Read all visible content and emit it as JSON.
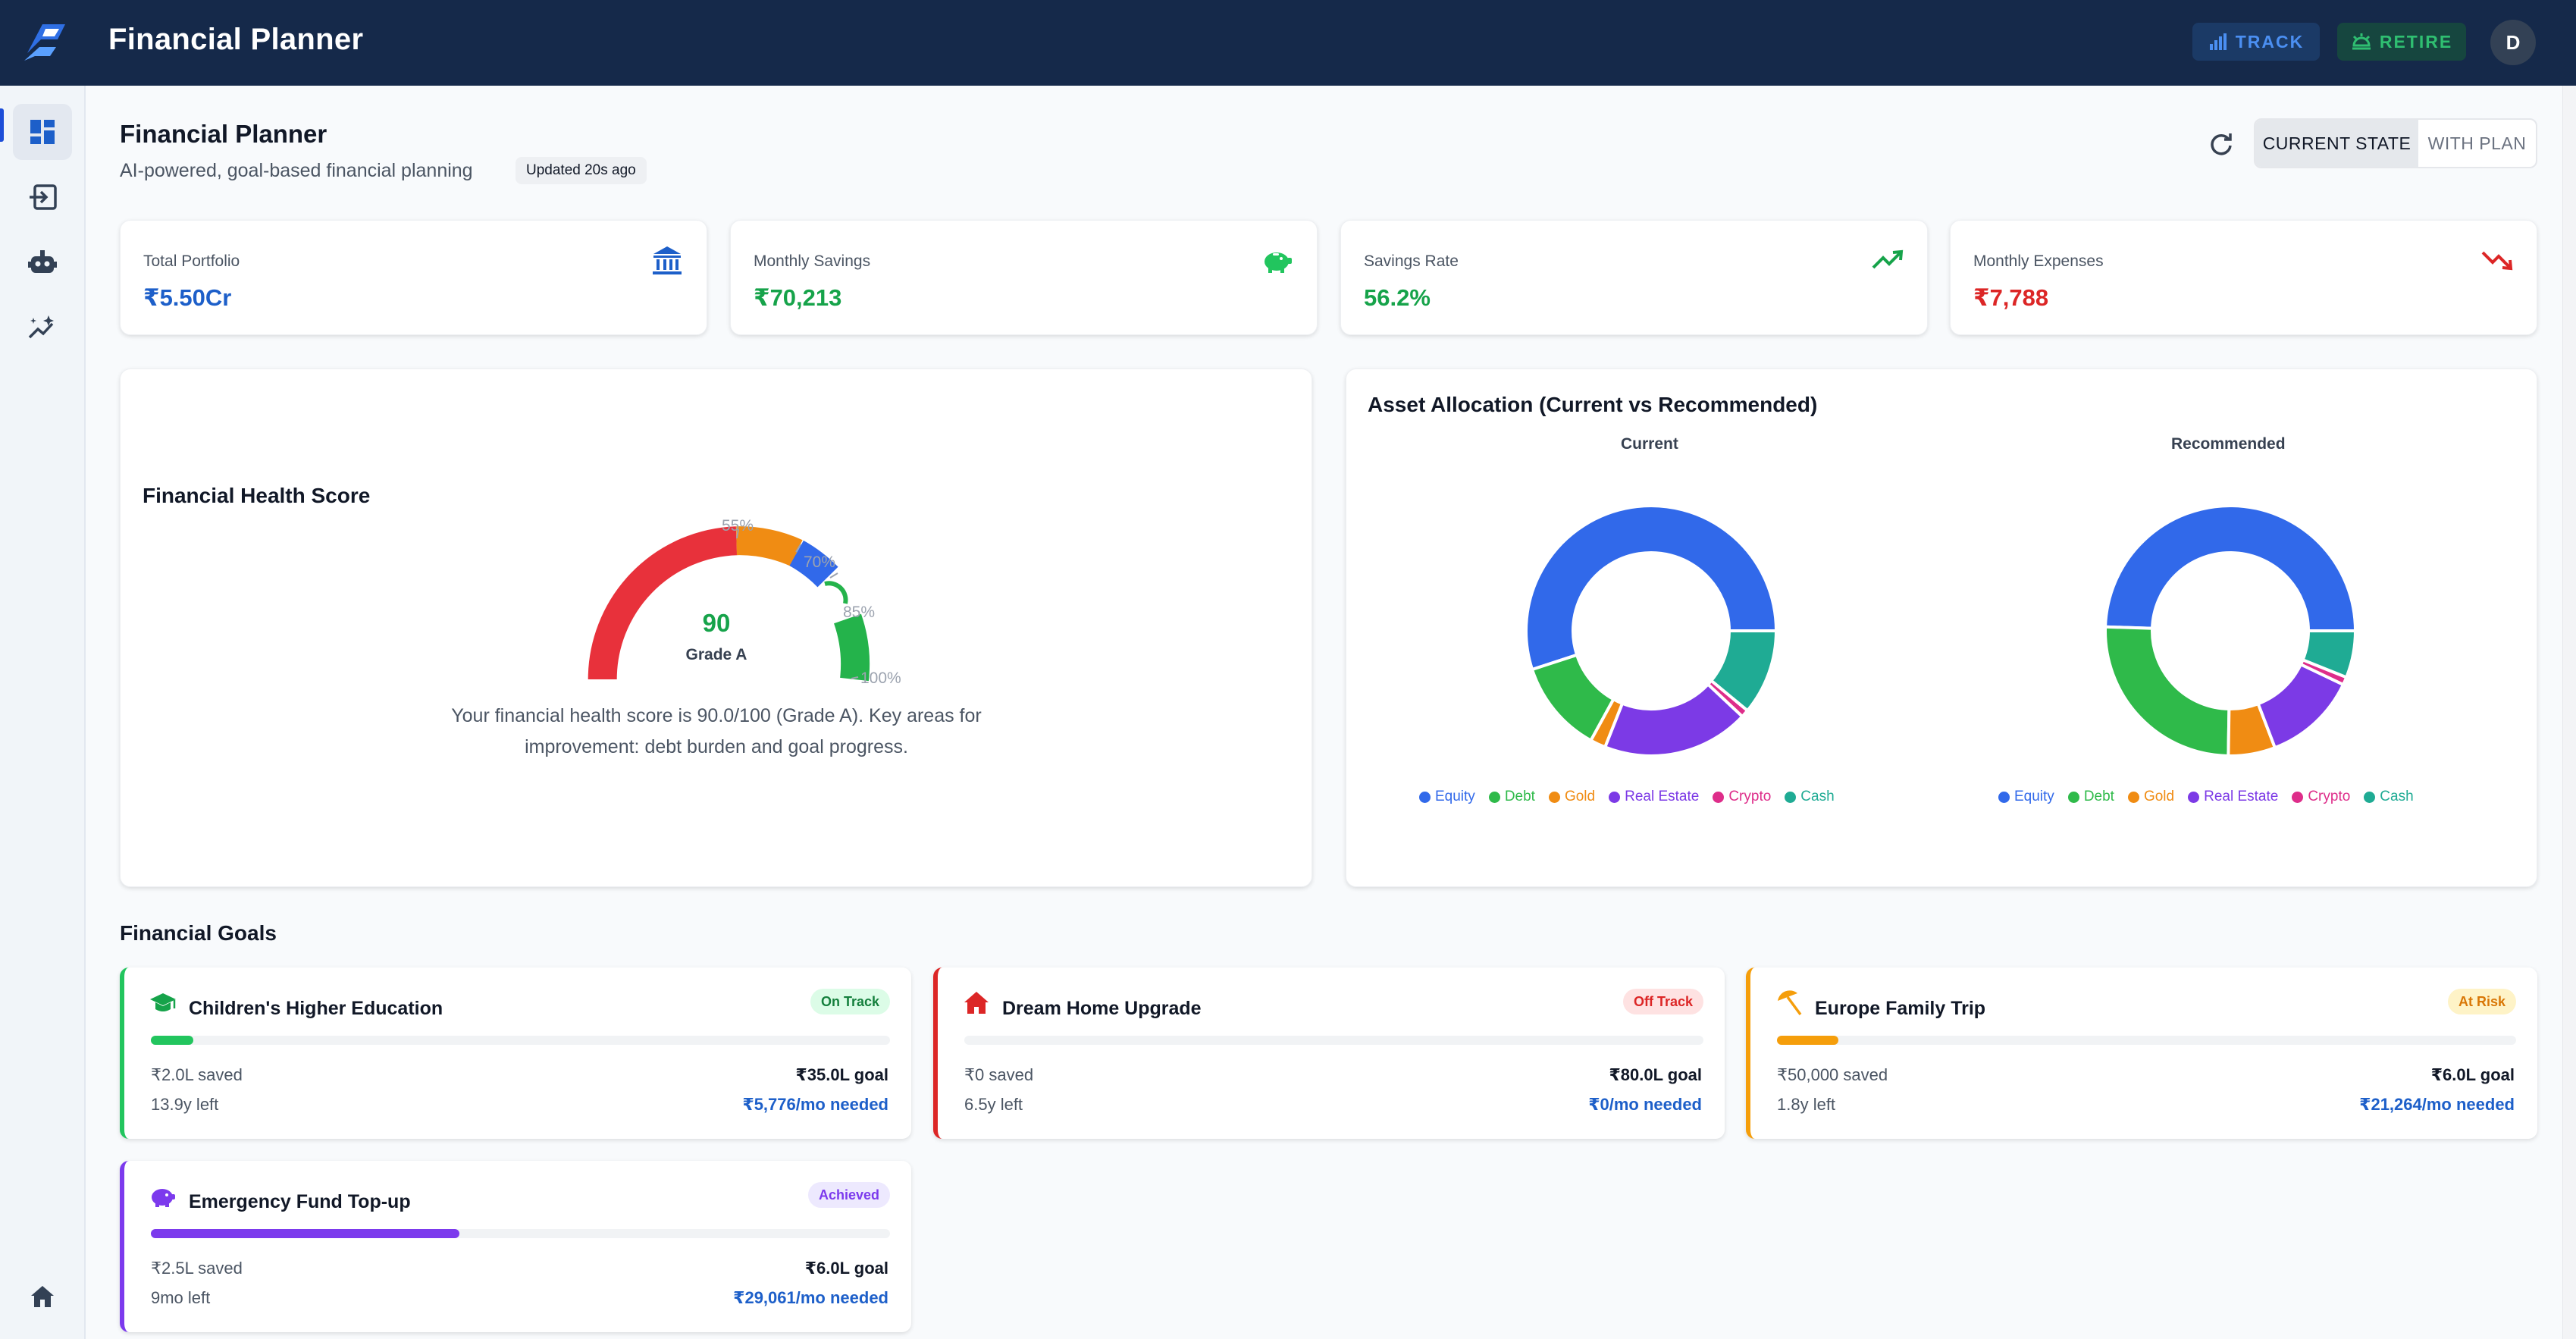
{
  "header": {
    "app_title": "Financial Planner",
    "track_label": "TRACK",
    "retire_label": "RETIRE",
    "avatar_initial": "D"
  },
  "page": {
    "title": "Financial Planner",
    "subtitle": "AI-powered, goal-based financial planning",
    "updated": "Updated 20s ago",
    "toggle": {
      "current": "CURRENT STATE",
      "plan": "WITH PLAN"
    }
  },
  "stats": [
    {
      "label": "Total Portfolio",
      "value": "₹5.50Cr",
      "color": "#1d5fc9",
      "icon": "bank-icon"
    },
    {
      "label": "Monthly Savings",
      "value": "₹70,213",
      "color": "#16a34a",
      "icon": "piggy-bank-icon"
    },
    {
      "label": "Savings Rate",
      "value": "56.2%",
      "color": "#16a34a",
      "icon": "trending-up-icon"
    },
    {
      "label": "Monthly Expenses",
      "value": "₹7,788",
      "color": "#dc2626",
      "icon": "trending-down-icon"
    }
  ],
  "health": {
    "title": "Financial Health Score",
    "score": "90",
    "grade": "Grade A",
    "score_value": 90,
    "ticks": [
      "55%",
      "70%",
      "85%",
      "100%"
    ],
    "description_line1": "Your financial health score is 90.0/100 (Grade A). Key areas for",
    "description_line2": "improvement: debt burden and goal progress."
  },
  "allocation": {
    "title": "Asset Allocation (Current vs Recommended)",
    "current_label": "Current",
    "recommended_label": "Recommended",
    "legend": [
      {
        "name": "Equity",
        "color": "#3169ea"
      },
      {
        "name": "Debt",
        "color": "#2fba4a"
      },
      {
        "name": "Gold",
        "color": "#f08c13"
      },
      {
        "name": "Real Estate",
        "color": "#7c3ae6"
      },
      {
        "name": "Crypto",
        "color": "#de2d8a"
      },
      {
        "name": "Cash",
        "color": "#1fab94"
      }
    ]
  },
  "chart_data": [
    {
      "type": "pie",
      "title": "Current",
      "categories": [
        "Equity",
        "Debt",
        "Gold",
        "Real Estate",
        "Crypto",
        "Cash"
      ],
      "values": [
        55,
        12,
        2,
        19,
        1,
        11
      ]
    },
    {
      "type": "pie",
      "title": "Recommended",
      "categories": [
        "Equity",
        "Debt",
        "Gold",
        "Real Estate",
        "Crypto",
        "Cash"
      ],
      "values": [
        49,
        25,
        6,
        12,
        1,
        6
      ]
    }
  ],
  "goals_section": "Financial Goals",
  "goals": [
    {
      "name": "Children's Higher Education",
      "status": "On Track",
      "saved": "₹2.0L saved",
      "left": "13.9y left",
      "target": "₹35.0L goal",
      "needed": "₹5,776/mo needed",
      "progress": 0.057,
      "color": "#22c55e",
      "badge_bg": "#dcfce7",
      "badge_fg": "#15803d",
      "icon": "graduation-cap-icon"
    },
    {
      "name": "Dream Home Upgrade",
      "status": "Off Track",
      "saved": "₹0 saved",
      "left": "6.5y left",
      "target": "₹80.0L goal",
      "needed": "₹0/mo needed",
      "progress": 0,
      "color": "#dc2626",
      "badge_bg": "#fee2e2",
      "badge_fg": "#dc2626",
      "icon": "house-icon"
    },
    {
      "name": "Europe Family Trip",
      "status": "At Risk",
      "saved": "₹50,000 saved",
      "left": "1.8y left",
      "target": "₹6.0L goal",
      "needed": "₹21,264/mo needed",
      "progress": 0.083,
      "color": "#f59e0b",
      "badge_bg": "#fef3c7",
      "badge_fg": "#d97706",
      "icon": "beach-umbrella-icon"
    },
    {
      "name": "Emergency Fund Top-up",
      "status": "Achieved",
      "saved": "₹2.5L saved",
      "left": "9mo left",
      "target": "₹6.0L goal",
      "needed": "₹29,061/mo needed",
      "progress": 0.417,
      "color": "#7c3aed",
      "badge_bg": "#ede9fe",
      "badge_fg": "#7c3aed",
      "icon": "piggy-bank-icon"
    }
  ]
}
